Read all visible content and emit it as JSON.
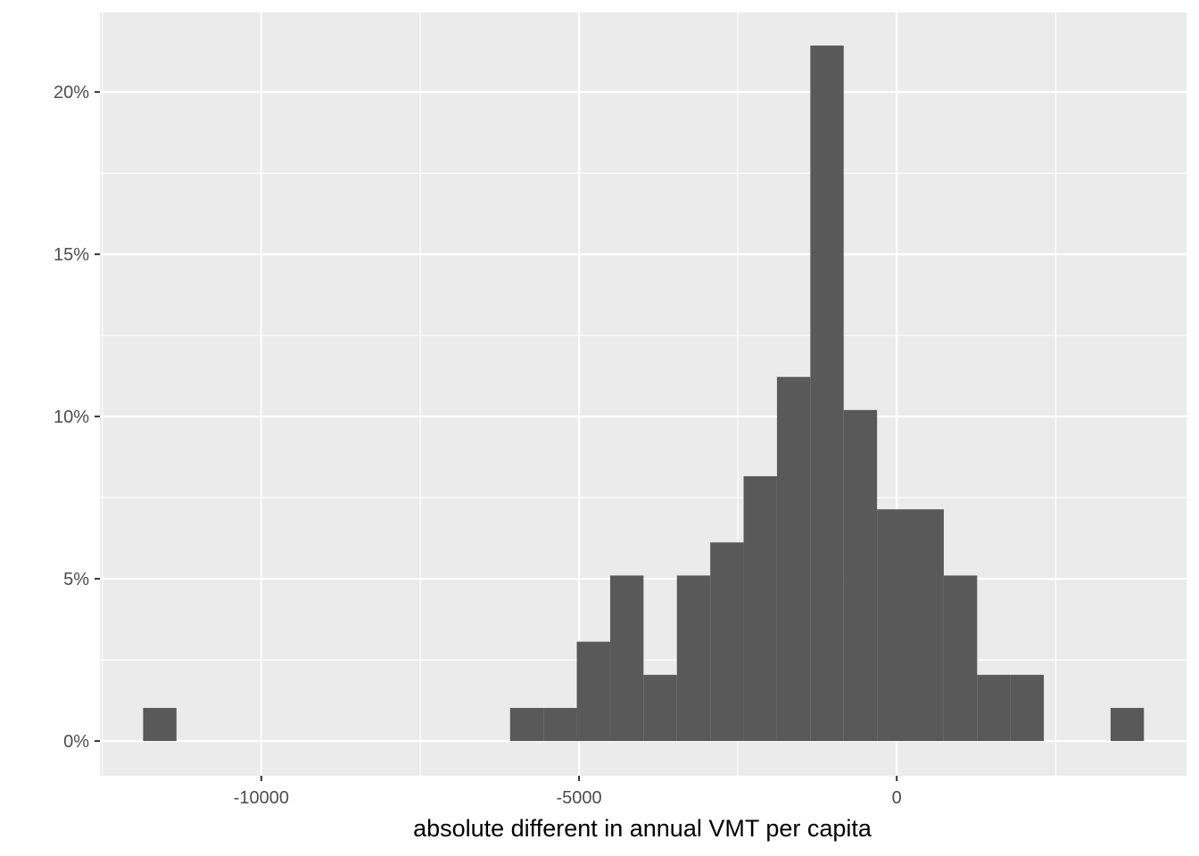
{
  "chart_data": {
    "type": "bar",
    "subtype": "histogram",
    "title": "",
    "xlabel": "absolute different in annual VMT per capita",
    "ylabel": "",
    "x_ticks": [
      -10000,
      -5000,
      0
    ],
    "x_tick_labels": [
      "-10000",
      "-5000",
      "0"
    ],
    "y_ticks": [
      0,
      5,
      10,
      15,
      20
    ],
    "y_tick_labels": [
      "0%",
      "5%",
      "10%",
      "15%",
      "20%"
    ],
    "xlim": [
      -12540,
      4560
    ],
    "ylim": [
      -1.07,
      22.45
    ],
    "bin_width": 525,
    "bins": [
      {
        "x0": -11860,
        "x1": -11335,
        "value": 1.02
      },
      {
        "x0": -6085,
        "x1": -5560,
        "value": 1.02
      },
      {
        "x0": -5560,
        "x1": -5035,
        "value": 1.02
      },
      {
        "x0": -5035,
        "x1": -4510,
        "value": 3.06
      },
      {
        "x0": -4510,
        "x1": -3985,
        "value": 5.1
      },
      {
        "x0": -3985,
        "x1": -3460,
        "value": 2.04
      },
      {
        "x0": -3460,
        "x1": -2935,
        "value": 5.1
      },
      {
        "x0": -2935,
        "x1": -2410,
        "value": 6.12
      },
      {
        "x0": -2410,
        "x1": -1885,
        "value": 8.16
      },
      {
        "x0": -1885,
        "x1": -1360,
        "value": 11.22
      },
      {
        "x0": -1360,
        "x1": -835,
        "value": 21.43
      },
      {
        "x0": -835,
        "x1": -310,
        "value": 10.2
      },
      {
        "x0": -310,
        "x1": 215,
        "value": 7.14
      },
      {
        "x0": 215,
        "x1": 740,
        "value": 7.14
      },
      {
        "x0": 740,
        "x1": 1265,
        "value": 5.1
      },
      {
        "x0": 1265,
        "x1": 1790,
        "value": 2.04
      },
      {
        "x0": 1790,
        "x1": 2315,
        "value": 2.04
      },
      {
        "x0": 3365,
        "x1": 3890,
        "value": 1.02
      }
    ],
    "grid": true,
    "legend": "none",
    "colors": {
      "panel_background": "#ebebeb",
      "grid_line": "#ffffff",
      "bar_fill": "#595959",
      "tick_text": "#4d4d4d",
      "axis_tick": "#333333",
      "title_text": "#000000"
    }
  }
}
